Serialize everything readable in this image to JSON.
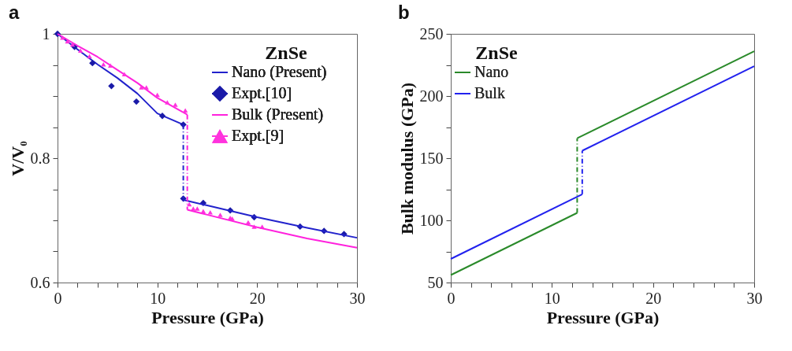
{
  "chart_data": [
    {
      "type": "line",
      "title": "a",
      "xlabel": "Pressure (GPa)",
      "ylabel": "V/V₀",
      "annotations": [
        "ZnSe"
      ],
      "legend": "top right",
      "grid": false,
      "xlim": [
        0,
        30
      ],
      "xticks": [
        0,
        {
          "value": 2,
          "label": null
        },
        {
          "value": 4,
          "label": null
        },
        {
          "value": 6,
          "label": null
        },
        {
          "value": 8,
          "label": null
        },
        10,
        {
          "value": 12,
          "label": null
        },
        {
          "value": 14,
          "label": null
        },
        {
          "value": 16,
          "label": null
        },
        {
          "value": 18,
          "label": null
        },
        20,
        {
          "value": 22,
          "label": null
        },
        {
          "value": 24,
          "label": null
        },
        {
          "value": 26,
          "label": null
        },
        {
          "value": 28,
          "label": null
        },
        30
      ],
      "ylim": [
        0.6,
        1
      ],
      "yticks": [
        0.6,
        {
          "value": 0.65,
          "label": null
        },
        {
          "value": 0.7,
          "label": null
        },
        {
          "value": 0.75,
          "label": null
        },
        0.8,
        {
          "value": 0.85,
          "label": null
        },
        {
          "value": 0.9,
          "label": null
        },
        {
          "value": 0.95,
          "label": null
        },
        1
      ],
      "series": [
        {
          "name": "Nano (Present)",
          "type": "line",
          "color": "#2222cc",
          "line_style": "solid",
          "x": [
            0,
            2,
            4,
            6,
            8,
            10,
            12.6
          ],
          "values": [
            1,
            0.975,
            0.951,
            0.929,
            0.904,
            0.872,
            0.854
          ]
        },
        {
          "name": "Expt.[10]",
          "type": "scatter",
          "marker": "diamond",
          "color": "#1a1aa8",
          "x": [
            0,
            1.7,
            3.5,
            5.4,
            7.9,
            10.5,
            12.6,
            12.6,
            14.6,
            17.3,
            19.7,
            24.3,
            26.7,
            28.7
          ],
          "values": [
            1,
            0.979,
            0.953,
            0.916,
            0.891,
            0.868,
            0.854,
            0.735,
            0.728,
            0.716,
            0.705,
            0.69,
            0.683,
            0.678
          ]
        },
        {
          "name": "Bulk (Present)",
          "type": "line",
          "color": "#ff22dd",
          "line_style": "solid",
          "x": [
            0,
            2,
            4,
            6,
            8,
            10,
            13
          ],
          "values": [
            1,
            0.981,
            0.963,
            0.942,
            0.921,
            0.897,
            0.87
          ]
        },
        {
          "name": "Expt.[9]",
          "type": "scatter",
          "marker": "triangle",
          "color": "#ff33dd",
          "x": [
            0.5,
            1,
            1.5,
            2.3,
            3.2,
            4.6,
            5.3,
            6.7,
            8.4,
            8.9,
            10,
            11,
            11.8,
            12.8,
            13.2,
            13.6,
            14,
            14.6,
            15.3,
            16.3,
            17.3,
            17.5,
            19.1,
            19.7,
            20.5
          ],
          "values": [
            0.994,
            0.988,
            0.983,
            0.973,
            0.964,
            0.951,
            0.949,
            0.935,
            0.914,
            0.914,
            0.902,
            0.89,
            0.886,
            0.877,
            0.726,
            0.719,
            0.719,
            0.715,
            0.713,
            0.709,
            0.704,
            0.703,
            0.697,
            0.69,
            0.69
          ]
        },
        {
          "type": "line",
          "color": "#2222cc",
          "line_style": "solid",
          "x": [
            12.6,
            15,
            20,
            25,
            30
          ],
          "values": [
            0.733,
            0.724,
            0.705,
            0.688,
            0.672
          ]
        },
        {
          "type": "line",
          "color": "#ff22dd",
          "line_style": "solid",
          "x": [
            13,
            15,
            20,
            25,
            30
          ],
          "values": [
            0.717,
            0.709,
            0.689,
            0.671,
            0.656
          ]
        },
        {
          "type": "line",
          "color": "#2222cc",
          "line_style": "dashed",
          "x": [
            12.6,
            12.6
          ],
          "values": [
            0.854,
            0.735
          ]
        },
        {
          "type": "line",
          "color": "#ff22dd",
          "line_style": "dashed",
          "x": [
            13,
            13
          ],
          "values": [
            0.87,
            0.717
          ]
        }
      ]
    },
    {
      "type": "line",
      "title": "b",
      "xlabel": "Pressure (GPa)",
      "ylabel": "Bulk modulus (GPa)",
      "annotations": [
        "ZnSe"
      ],
      "legend": "top left",
      "grid": false,
      "xlim": [
        0,
        30
      ],
      "xticks": [
        0,
        {
          "value": 2,
          "label": null
        },
        {
          "value": 4,
          "label": null
        },
        {
          "value": 6,
          "label": null
        },
        {
          "value": 8,
          "label": null
        },
        10,
        {
          "value": 12,
          "label": null
        },
        {
          "value": 14,
          "label": null
        },
        {
          "value": 16,
          "label": null
        },
        {
          "value": 18,
          "label": null
        },
        20,
        {
          "value": 22,
          "label": null
        },
        {
          "value": 24,
          "label": null
        },
        {
          "value": 26,
          "label": null
        },
        {
          "value": 28,
          "label": null
        },
        30
      ],
      "ylim": [
        50,
        250
      ],
      "yticks": [
        50,
        {
          "value": 75,
          "label": null
        },
        100,
        {
          "value": 125,
          "label": null
        },
        150,
        {
          "value": 175,
          "label": null
        },
        200,
        {
          "value": 225,
          "label": null
        },
        250
      ],
      "series": [
        {
          "name": "Nano",
          "type": "line",
          "color": "#2a8a2a",
          "line_style": "solid",
          "x": [
            0,
            12.5
          ],
          "values": [
            56,
            106
          ]
        },
        {
          "name": "Bulk",
          "type": "line",
          "color": "#2222ee",
          "line_style": "solid",
          "x": [
            0,
            13
          ],
          "values": [
            69,
            121
          ]
        },
        {
          "type": "line",
          "color": "#2a8a2a",
          "line_style": "solid",
          "x": [
            12.5,
            30
          ],
          "values": [
            166,
            236
          ]
        },
        {
          "type": "line",
          "color": "#2222ee",
          "line_style": "solid",
          "x": [
            13,
            30
          ],
          "values": [
            156,
            224
          ]
        },
        {
          "type": "line",
          "color": "#2a8a2a",
          "line_style": "dashed",
          "x": [
            12.5,
            12.5
          ],
          "values": [
            106,
            166
          ]
        },
        {
          "type": "line",
          "color": "#2222ee",
          "line_style": "dashed",
          "x": [
            13,
            13
          ],
          "values": [
            121,
            156
          ]
        }
      ]
    }
  ]
}
